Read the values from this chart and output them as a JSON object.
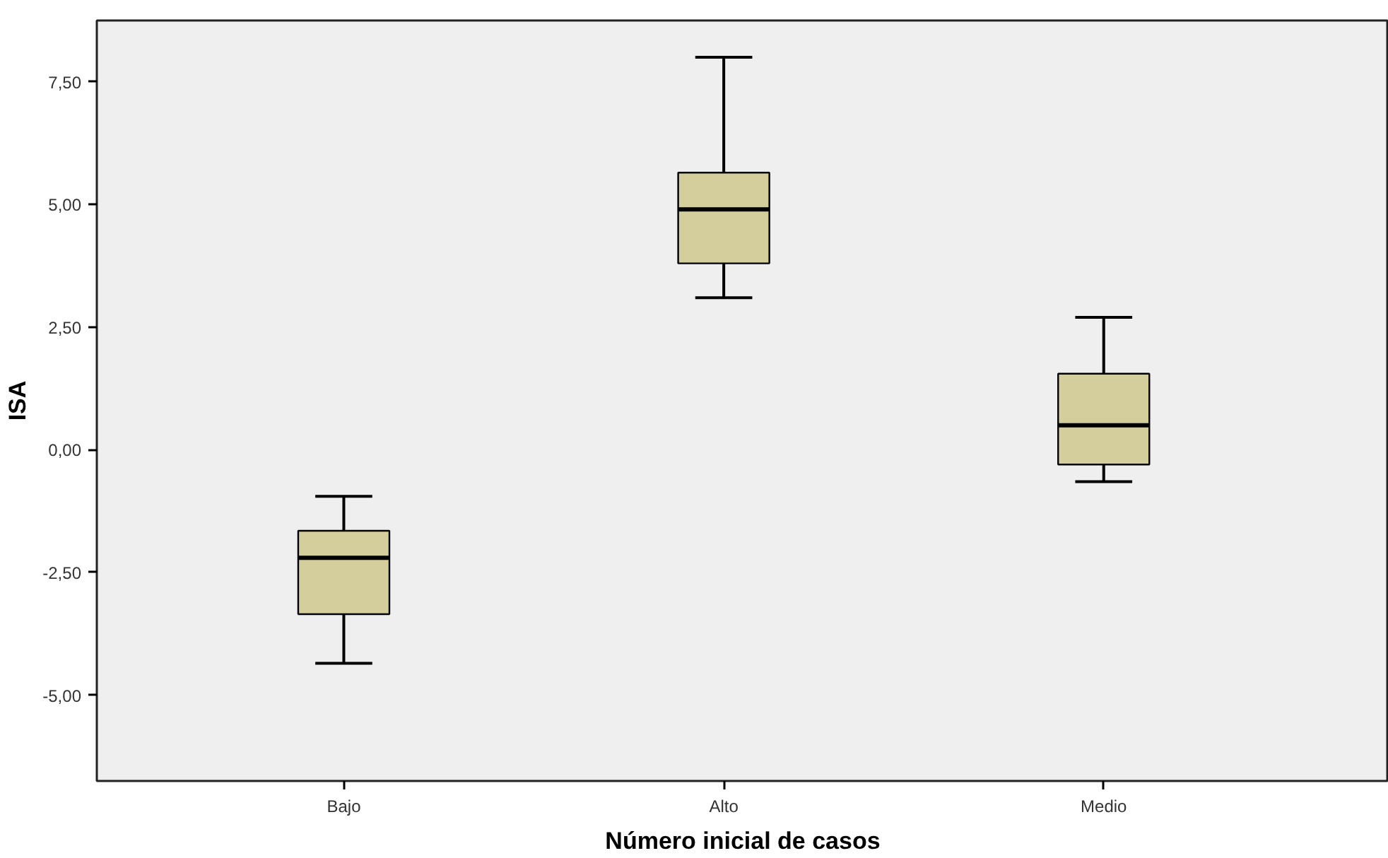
{
  "chart_data": {
    "type": "box",
    "xlabel": "Número inicial de casos",
    "ylabel": "ISA",
    "categories": [
      "Bajo",
      "Alto",
      "Medio"
    ],
    "color": "#d3ce9b",
    "boxes": [
      {
        "low": -4.35,
        "q1": -3.35,
        "median": -2.2,
        "q3": -1.65,
        "high": -0.95
      },
      {
        "low": 3.1,
        "q1": 3.8,
        "median": 4.9,
        "q3": 5.65,
        "high": 8.0
      },
      {
        "low": -0.65,
        "q1": -0.3,
        "median": 0.5,
        "q3": 1.55,
        "high": 2.7
      }
    ],
    "ylim": [
      -6.75,
      8.75
    ],
    "yticks": [
      {
        "value": -5,
        "label": "-5,00"
      },
      {
        "value": -2.5,
        "label": "-2,50"
      },
      {
        "value": 0,
        "label": "0,00"
      },
      {
        "value": 2.5,
        "label": "2,50"
      },
      {
        "value": 5,
        "label": "5,00"
      },
      {
        "value": 7.5,
        "label": "7,50"
      }
    ],
    "grid": false
  }
}
